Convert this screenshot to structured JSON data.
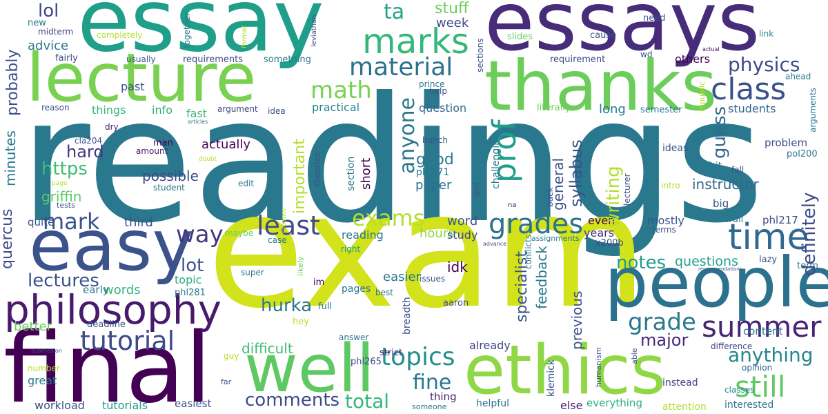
{
  "words": [
    {
      "text": "readings",
      "color": "#2a788e",
      "vertical": false
    },
    {
      "text": "exam",
      "color": "#d2e21b",
      "vertical": false
    },
    {
      "text": "essay",
      "color": "#1f9e89",
      "vertical": false
    },
    {
      "text": "essays",
      "color": "#472c7a",
      "vertical": false
    },
    {
      "text": "thanks",
      "color": "#6ccd5a",
      "vertical": false
    },
    {
      "text": "lecture",
      "color": "#7ad151",
      "vertical": false
    },
    {
      "text": "final",
      "color": "#440154",
      "vertical": false
    },
    {
      "text": "ethics",
      "color": "#8fd744",
      "vertical": false
    },
    {
      "text": "easy",
      "color": "#3b528b",
      "vertical": false
    },
    {
      "text": "people",
      "color": "#2c728e",
      "vertical": false
    },
    {
      "text": "well",
      "color": "#5ec962",
      "vertical": false
    },
    {
      "text": "philosophy",
      "color": "#481a6c",
      "vertical": false
    },
    {
      "text": "time",
      "color": "#31688e",
      "vertical": false
    },
    {
      "text": "class",
      "color": "#3b528b",
      "vertical": false
    },
    {
      "text": "marks",
      "color": "#35b779",
      "vertical": false
    },
    {
      "text": "material",
      "color": "#2d708e",
      "vertical": false
    },
    {
      "text": "least",
      "color": "#3e4989",
      "vertical": false
    },
    {
      "text": "grades",
      "color": "#2c728e",
      "vertical": false
    },
    {
      "text": "summer",
      "color": "#482475",
      "vertical": false
    },
    {
      "text": "tutorial",
      "color": "#3e4a89",
      "vertical": false
    },
    {
      "text": "exams",
      "color": "#b5de2b",
      "vertical": false
    },
    {
      "text": "topics",
      "color": "#21908d",
      "vertical": false
    },
    {
      "text": "still",
      "color": "#5ec962",
      "vertical": false
    },
    {
      "text": "math",
      "color": "#7ad151",
      "vertical": false
    },
    {
      "text": "physics",
      "color": "#3e4a89",
      "vertical": false
    },
    {
      "text": "anything",
      "color": "#24868e",
      "vertical": false
    },
    {
      "text": "grade",
      "color": "#2a788e",
      "vertical": false
    },
    {
      "text": "mark",
      "color": "#3b528b",
      "vertical": false
    },
    {
      "text": "way",
      "color": "#453781",
      "vertical": false
    },
    {
      "text": "comments",
      "color": "#3e4a89",
      "vertical": false
    },
    {
      "text": "total",
      "color": "#35b779",
      "vertical": false
    },
    {
      "text": "fine",
      "color": "#2a788e",
      "vertical": false
    },
    {
      "text": "lectures",
      "color": "#3b528b",
      "vertical": false
    },
    {
      "text": "hurka",
      "color": "#2a788e",
      "vertical": false
    },
    {
      "text": "lot",
      "color": "#3b528b",
      "vertical": false
    },
    {
      "text": "major",
      "color": "#482677",
      "vertical": false
    },
    {
      "text": "notes",
      "color": "#1f9e89",
      "vertical": false
    },
    {
      "text": "https",
      "color": "#3fbc73",
      "vertical": false
    },
    {
      "text": "hard",
      "color": "#453781",
      "vertical": false
    },
    {
      "text": "instructor",
      "color": "#31688e",
      "vertical": false
    },
    {
      "text": "questions",
      "color": "#1fa088",
      "vertical": false
    },
    {
      "text": "difficult",
      "color": "#3fbc73",
      "vertical": false
    },
    {
      "text": "good",
      "color": "#2a788e",
      "vertical": false
    },
    {
      "text": "griffin",
      "color": "#5ec962",
      "vertical": false
    },
    {
      "text": "possible",
      "color": "#3e4a89",
      "vertical": false
    },
    {
      "text": "third",
      "color": "#3b528b",
      "vertical": false
    },
    {
      "text": "stuff",
      "color": "#6ccd5a",
      "vertical": false
    },
    {
      "text": "week",
      "color": "#3e4a89",
      "vertical": false
    },
    {
      "text": "ta",
      "color": "#20a386",
      "vertical": false
    },
    {
      "text": "lol",
      "color": "#414487",
      "vertical": false
    },
    {
      "text": "advice",
      "color": "#2a788e",
      "vertical": false
    },
    {
      "text": "better",
      "color": "#6ccd5a",
      "vertical": false
    },
    {
      "text": "words",
      "color": "#35b779",
      "vertical": false
    },
    {
      "text": "actually",
      "color": "#440154",
      "vertical": false
    },
    {
      "text": "easier",
      "color": "#2a788e",
      "vertical": false
    },
    {
      "text": "paper",
      "color": "#2d708e",
      "vertical": false
    },
    {
      "text": "idk",
      "color": "#440154",
      "vertical": false
    },
    {
      "text": "hours",
      "color": "#8fd744",
      "vertical": false
    },
    {
      "text": "study",
      "color": "#3e4a89",
      "vertical": false
    },
    {
      "text": "word",
      "color": "#3b528b",
      "vertical": false
    },
    {
      "text": "reading",
      "color": "#2a788e",
      "vertical": false
    },
    {
      "text": "years",
      "color": "#46337e",
      "vertical": false
    },
    {
      "text": "mostly",
      "color": "#3b528b",
      "vertical": false
    },
    {
      "text": "content",
      "color": "#2a788e",
      "vertical": false
    },
    {
      "text": "students",
      "color": "#31688e",
      "vertical": false
    },
    {
      "text": "things",
      "color": "#35b779",
      "vertical": false
    },
    {
      "text": "topic",
      "color": "#29af7f",
      "vertical": false
    },
    {
      "text": "already",
      "color": "#414487",
      "vertical": false
    },
    {
      "text": "long",
      "color": "#2a788e",
      "vertical": false
    },
    {
      "text": "question",
      "color": "#31688e",
      "vertical": false
    },
    {
      "text": "practical",
      "color": "#24868e",
      "vertical": false
    },
    {
      "text": "past",
      "color": "#3b528b",
      "vertical": false
    },
    {
      "text": "info",
      "color": "#29af7f",
      "vertical": false
    },
    {
      "text": "fast",
      "color": "#3fbc73",
      "vertical": false
    },
    {
      "text": "others",
      "color": "#440154",
      "vertical": false
    },
    {
      "text": "even",
      "color": "#440154",
      "vertical": false
    },
    {
      "text": "quite",
      "color": "#3b528b",
      "vertical": false
    },
    {
      "text": "early",
      "color": "#2a788e",
      "vertical": false
    },
    {
      "text": "great",
      "color": "#2a788e",
      "vertical": false
    },
    {
      "text": "workload",
      "color": "#3b528b",
      "vertical": false
    },
    {
      "text": "tutorials",
      "color": "#1f9e89",
      "vertical": false
    },
    {
      "text": "easiest",
      "color": "#3b528b",
      "vertical": false
    },
    {
      "text": "thing",
      "color": "#481a6c",
      "vertical": false
    },
    {
      "text": "else",
      "color": "#481a6c",
      "vertical": false
    },
    {
      "text": "everything",
      "color": "#29af7f",
      "vertical": false
    },
    {
      "text": "interested",
      "color": "#2a788e",
      "vertical": false
    },
    {
      "text": "attention",
      "color": "#b5de2b",
      "vertical": false
    },
    {
      "text": "helpful",
      "color": "#2a788e",
      "vertical": false
    },
    {
      "text": "instead",
      "color": "#414487",
      "vertical": false
    },
    {
      "text": "classes",
      "color": "#24868e",
      "vertical": false
    },
    {
      "text": "opinion",
      "color": "#31688e",
      "vertical": false
    },
    {
      "text": "difference",
      "color": "#414487",
      "vertical": false
    },
    {
      "text": "problem",
      "color": "#3e4a89",
      "vertical": false
    },
    {
      "text": "pol200",
      "color": "#2a788e",
      "vertical": false
    },
    {
      "text": "phl217",
      "color": "#3e4a89",
      "vertical": false
    },
    {
      "text": "phl271",
      "color": "#2a788e",
      "vertical": false
    },
    {
      "text": "phl281",
      "color": "#2a788e",
      "vertical": false
    },
    {
      "text": "phl265",
      "color": "#414487",
      "vertical": false
    },
    {
      "text": "x200b",
      "color": "#414487",
      "vertical": false
    },
    {
      "text": "ideas",
      "color": "#3b528b",
      "vertical": false
    },
    {
      "text": "bit",
      "color": "#2a788e",
      "vertical": false
    },
    {
      "text": "big",
      "color": "#3b528b",
      "vertical": false
    },
    {
      "text": "fall",
      "color": "#3e4a89",
      "vertical": false
    },
    {
      "text": "intro",
      "color": "#b5de2b",
      "vertical": false
    },
    {
      "text": "overall",
      "color": "#2a788e",
      "vertical": false
    },
    {
      "text": "lazy",
      "color": "#3b528b",
      "vertical": false
    },
    {
      "text": "term",
      "color": "#2a788e",
      "vertical": false
    },
    {
      "text": "terms",
      "color": "#3b528b",
      "vertical": false
    },
    {
      "text": "semester",
      "color": "#2a788e",
      "vertical": false
    },
    {
      "text": "literally",
      "color": "#6ccd5a",
      "vertical": false
    },
    {
      "text": "requirement",
      "color": "#3e4a89",
      "vertical": false
    },
    {
      "text": "requirements",
      "color": "#3e4a89",
      "vertical": false
    },
    {
      "text": "something",
      "color": "#2a788e",
      "vertical": false
    },
    {
      "text": "completely",
      "color": "#b5de2b",
      "vertical": false
    },
    {
      "text": "new",
      "color": "#2a788e",
      "vertical": false
    },
    {
      "text": "midterm",
      "color": "#414487",
      "vertical": false
    },
    {
      "text": "fairly",
      "color": "#3e4a89",
      "vertical": false
    },
    {
      "text": "usually",
      "color": "#3b528b",
      "vertical": false
    },
    {
      "text": "reason",
      "color": "#3b528b",
      "vertical": false
    },
    {
      "text": "argument",
      "color": "#414487",
      "vertical": false
    },
    {
      "text": "idea",
      "color": "#3b528b",
      "vertical": false
    },
    {
      "text": "dry",
      "color": "#481a6c",
      "vertical": false
    },
    {
      "text": "man",
      "color": "#440154",
      "vertical": false
    },
    {
      "text": "amount",
      "color": "#481a6c",
      "vertical": false
    },
    {
      "text": "cla204",
      "color": "#3b528b",
      "vertical": false
    },
    {
      "text": "student",
      "color": "#2a788e",
      "vertical": false
    },
    {
      "text": "tests",
      "color": "#3b528b",
      "vertical": false
    },
    {
      "text": "page",
      "color": "#b5de2b",
      "vertical": false
    },
    {
      "text": "doubt",
      "color": "#b5de2b",
      "vertical": false
    },
    {
      "text": "articles",
      "color": "#2a788e",
      "vertical": false
    },
    {
      "text": "edit",
      "color": "#2a788e",
      "vertical": false
    },
    {
      "text": "maybe",
      "color": "#6ccd5a",
      "vertical": false
    },
    {
      "text": "case",
      "color": "#2a788e",
      "vertical": false
    },
    {
      "text": "right",
      "color": "#1f9e89",
      "vertical": false
    },
    {
      "text": "super",
      "color": "#2a788e",
      "vertical": false
    },
    {
      "text": "im",
      "color": "#440154",
      "vertical": false
    },
    {
      "text": "pages",
      "color": "#2a788e",
      "vertical": false
    },
    {
      "text": "issues",
      "color": "#3b528b",
      "vertical": false
    },
    {
      "text": "best",
      "color": "#2a788e",
      "vertical": false
    },
    {
      "text": "full",
      "color": "#2a788e",
      "vertical": false
    },
    {
      "text": "hey",
      "color": "#b5de2b",
      "vertical": false
    },
    {
      "text": "aaron",
      "color": "#3b528b",
      "vertical": false
    },
    {
      "text": "answer",
      "color": "#2a788e",
      "vertical": false
    },
    {
      "text": "strict",
      "color": "#481a6c",
      "vertical": false
    },
    {
      "text": "guy",
      "color": "#b5de2b",
      "vertical": false
    },
    {
      "text": "submission",
      "color": "#3b528b",
      "vertical": false
    },
    {
      "text": "number",
      "color": "#b5de2b",
      "vertical": false
    },
    {
      "text": "far",
      "color": "#3b528b",
      "vertical": false
    },
    {
      "text": "someone",
      "color": "#2a788e",
      "vertical": false
    },
    {
      "text": "bunch",
      "color": "#3b528b",
      "vertical": false
    },
    {
      "text": "prince",
      "color": "#2a788e",
      "vertical": false
    },
    {
      "text": "help",
      "color": "#3b528b",
      "vertical": false
    },
    {
      "text": "slides",
      "color": "#6ccd5a",
      "vertical": false
    },
    {
      "text": "cause",
      "color": "#3b528b",
      "vertical": false
    },
    {
      "text": "need",
      "color": "#3b528b",
      "vertical": false
    },
    {
      "text": "link",
      "color": "#24868e",
      "vertical": false
    },
    {
      "text": "wd",
      "color": "#3b528b",
      "vertical": false
    },
    {
      "text": "actual",
      "color": "#440154",
      "vertical": false
    },
    {
      "text": "ahead",
      "color": "#2a788e",
      "vertical": false
    },
    {
      "text": "na",
      "color": "#481a6c",
      "vertical": false
    },
    {
      "text": "assignments",
      "color": "#2a788e",
      "vertical": false
    },
    {
      "text": "advance",
      "color": "#3e4a89",
      "vertical": false
    },
    {
      "text": "recommendations",
      "color": "#3b528b",
      "vertical": false
    },
    {
      "text": "response",
      "color": "#b5de2b",
      "vertical": true
    },
    {
      "text": "deadline",
      "color": "#3b528b",
      "vertical": false
    },
    {
      "text": "likely",
      "color": "#6ccd5a",
      "vertical": true
    },
    {
      "text": "quercus",
      "color": "#3e4a89",
      "vertical": true
    },
    {
      "text": "minutes",
      "color": "#2a788e",
      "vertical": true
    },
    {
      "text": "probably",
      "color": "#3b528b",
      "vertical": true
    },
    {
      "text": "anyone",
      "color": "#2a788e",
      "vertical": true
    },
    {
      "text": "prof",
      "color": "#1f9e89",
      "vertical": true
    },
    {
      "text": "important",
      "color": "#b5de2b",
      "vertical": true
    },
    {
      "text": "writing",
      "color": "#b5de2b",
      "vertical": true
    },
    {
      "text": "guess",
      "color": "#31688e",
      "vertical": true
    },
    {
      "text": "syllabus",
      "color": "#3b528b",
      "vertical": true
    },
    {
      "text": "general",
      "color": "#3b528b",
      "vertical": true
    },
    {
      "text": "specialist",
      "color": "#3b528b",
      "vertical": true
    },
    {
      "text": "feedback",
      "color": "#2a788e",
      "vertical": true
    },
    {
      "text": "previous",
      "color": "#3b528b",
      "vertical": true
    },
    {
      "text": "definitely",
      "color": "#3e4a89",
      "vertical": true
    },
    {
      "text": "short",
      "color": "#440154",
      "vertical": true
    },
    {
      "text": "section",
      "color": "#2a788e",
      "vertical": true
    },
    {
      "text": "theories",
      "color": "#3b528b",
      "vertical": true
    },
    {
      "text": "half",
      "color": "#2a788e",
      "vertical": true
    },
    {
      "text": "challenging",
      "color": "#2a788e",
      "vertical": true
    },
    {
      "text": "gon",
      "color": "#3b528b",
      "vertical": true
    },
    {
      "text": "back",
      "color": "#3b528b",
      "vertical": true
    },
    {
      "text": "lecturer",
      "color": "#3b528b",
      "vertical": true
    },
    {
      "text": "republic",
      "color": "#b5de2b",
      "vertical": true
    },
    {
      "text": "arguments",
      "color": "#2a788e",
      "vertical": true
    },
    {
      "text": "breadth",
      "color": "#3b528b",
      "vertical": true
    },
    {
      "text": "conflicts",
      "color": "#2a788e",
      "vertical": true
    },
    {
      "text": "humanism",
      "color": "#3b528b",
      "vertical": true
    },
    {
      "text": "klemick",
      "color": "#3b528b",
      "vertical": true
    },
    {
      "text": "able",
      "color": "#3b528b",
      "vertical": true
    },
    {
      "text": "together",
      "color": "#2a788e",
      "vertical": true
    },
    {
      "text": "format",
      "color": "#b5de2b",
      "vertical": true
    },
    {
      "text": "leviathan",
      "color": "#3b528b",
      "vertical": true
    },
    {
      "text": "sections",
      "color": "#3b528b",
      "vertical": true
    }
  ]
}
